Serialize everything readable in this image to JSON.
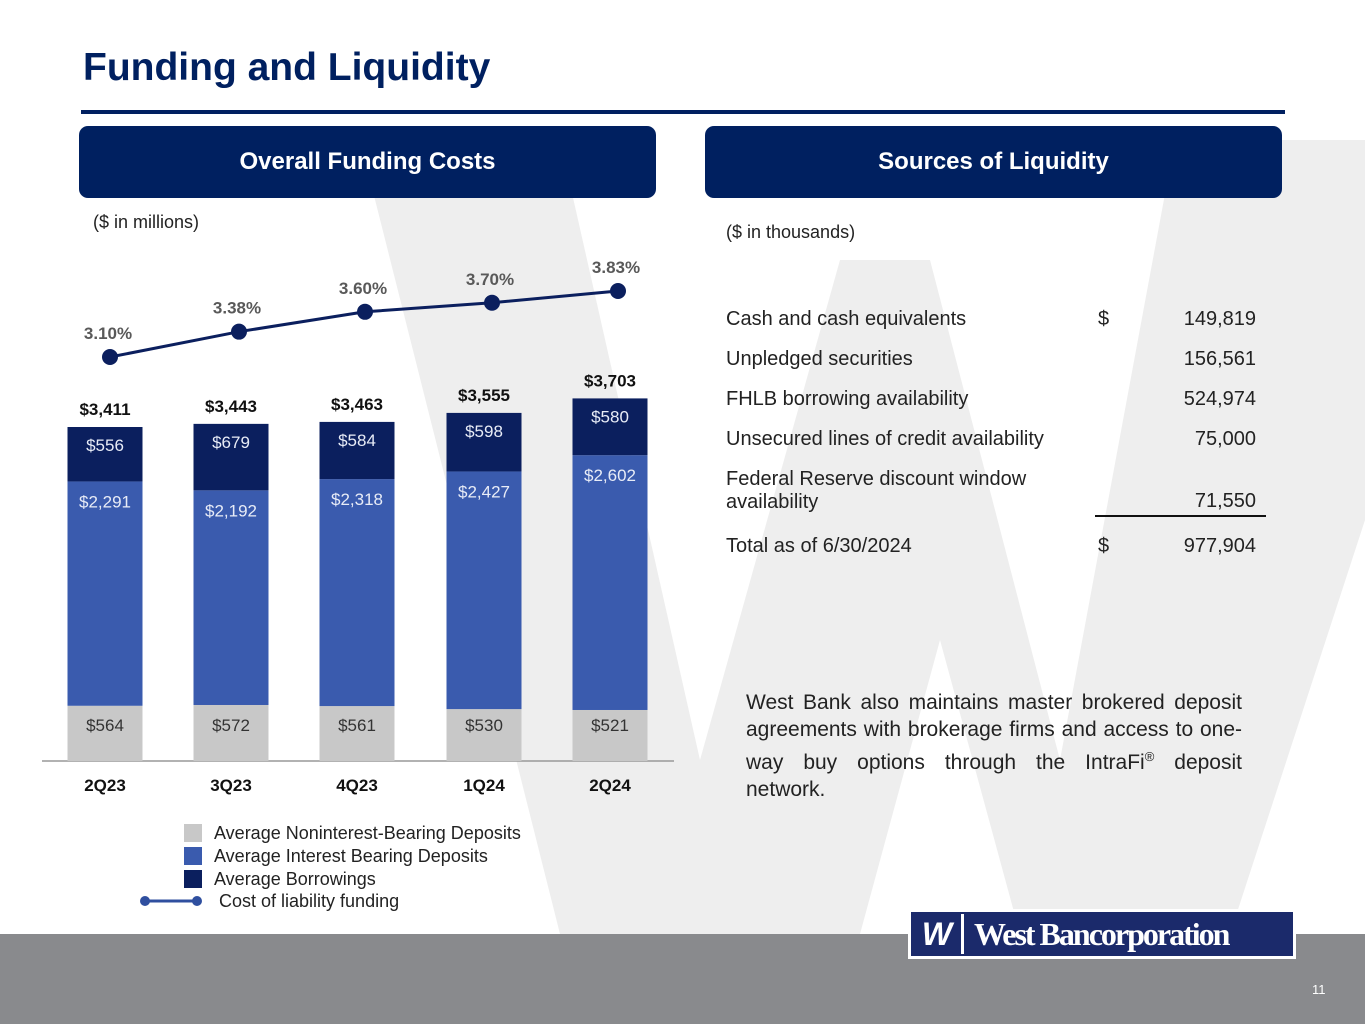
{
  "slide": {
    "title": "Funding and Liquidity",
    "page_number": "11",
    "logo_text": "West Bancorporation",
    "logo_mark": "W"
  },
  "left_panel": {
    "header": "Overall Funding Costs",
    "unit_note": "($ in millions)"
  },
  "right_panel": {
    "header": "Sources of Liquidity",
    "unit_note": "($ in thousands)",
    "rows": [
      {
        "label": "Cash and cash equivalents",
        "dollar": "$",
        "value": "149,819"
      },
      {
        "label": "Unpledged securities",
        "dollar": "",
        "value": "156,561"
      },
      {
        "label": "FHLB borrowing availability",
        "dollar": "",
        "value": "524,974"
      },
      {
        "label": "Unsecured lines of credit availability",
        "dollar": "",
        "value": "75,000"
      },
      {
        "label": "Federal Reserve discount window availability",
        "dollar": "",
        "value": "71,550"
      }
    ],
    "total": {
      "label": "Total as of 6/30/2024",
      "dollar": "$",
      "value": "977,904"
    },
    "note_main": "West Bank also maintains master brokered deposit agreements with brokerage firms and access to one-way buy options through the IntraFi",
    "note_sup": "®",
    "note_end": " deposit network."
  },
  "chart_data": {
    "type": "bar",
    "stacked": true,
    "categories": [
      "2Q23",
      "3Q23",
      "4Q23",
      "1Q24",
      "2Q24"
    ],
    "series": [
      {
        "name": "Average Noninterest-Bearing Deposits",
        "values": [
          564,
          572,
          561,
          530,
          521
        ],
        "labels": [
          "$564",
          "$572",
          "$561",
          "$530",
          "$521"
        ],
        "color": "#C8C8C8"
      },
      {
        "name": "Average Interest Bearing Deposits",
        "values": [
          2291,
          2192,
          2318,
          2427,
          2602
        ],
        "labels": [
          "$2,291",
          "$2,192",
          "$2,318",
          "$2,427",
          "$2,602"
        ],
        "color": "#3A5BAE"
      },
      {
        "name": "Average Borrowings",
        "values": [
          556,
          679,
          584,
          598,
          580
        ],
        "labels": [
          "$556",
          "$679",
          "$584",
          "$598",
          "$580"
        ],
        "color": "#0B1F5E"
      }
    ],
    "totals": [
      3411,
      3443,
      3463,
      3555,
      3703
    ],
    "total_labels": [
      "$3,411",
      "$3,443",
      "$3,463",
      "$3,555",
      "$3,703"
    ],
    "line": {
      "name": "Cost of liability funding",
      "values": [
        3.1,
        3.38,
        3.6,
        3.7,
        3.83
      ],
      "labels": [
        "3.10%",
        "3.38%",
        "3.60%",
        "3.70%",
        "3.83%"
      ],
      "color": "#0B1F5E"
    },
    "legend_position": "bottom",
    "grid": false
  }
}
